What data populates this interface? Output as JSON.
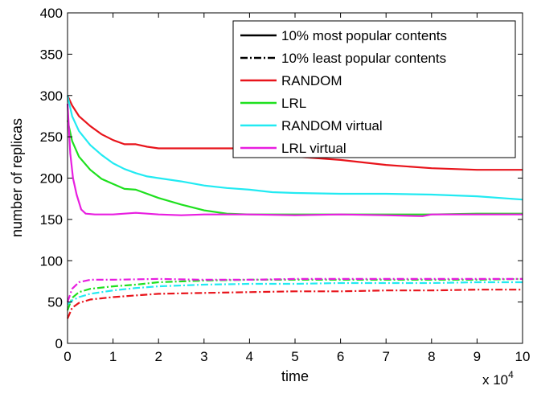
{
  "chart_data": {
    "type": "line",
    "xlabel": "time",
    "ylabel": "number of replicas",
    "x_multiplier_label": "x 10",
    "x_multiplier_exp": "4",
    "xlim": [
      0,
      100000
    ],
    "ylim": [
      0,
      400
    ],
    "x_tick_values": [
      0,
      10000,
      20000,
      30000,
      40000,
      50000,
      60000,
      70000,
      80000,
      90000,
      100000
    ],
    "x_tick_labels": [
      "0",
      "1",
      "2",
      "3",
      "4",
      "5",
      "6",
      "7",
      "8",
      "9",
      "10"
    ],
    "y_tick_values": [
      0,
      50,
      100,
      150,
      200,
      250,
      300,
      350,
      400
    ],
    "y_tick_labels": [
      "0",
      "50",
      "100",
      "150",
      "200",
      "250",
      "300",
      "350",
      "400"
    ],
    "grid": false,
    "legend_position": "top-right",
    "legend": [
      {
        "label": "10% most popular contents",
        "color": "#000000",
        "style": "solid"
      },
      {
        "label": "10% least popular contents",
        "color": "#000000",
        "style": "dashdot"
      },
      {
        "label": "RANDOM",
        "color": "#e8141b",
        "style": "solid"
      },
      {
        "label": "LRL",
        "color": "#1ee01e",
        "style": "solid"
      },
      {
        "label": "RANDOM virtual",
        "color": "#22eaf2",
        "style": "solid"
      },
      {
        "label": "LRL virtual",
        "color": "#e81ee0",
        "style": "solid"
      }
    ],
    "series": [
      {
        "group": "most",
        "method": "RANDOM",
        "color": "#e8141b",
        "style": "solid",
        "points": [
          [
            0,
            300
          ],
          [
            1000,
            288
          ],
          [
            2500,
            275
          ],
          [
            5000,
            263
          ],
          [
            7500,
            253
          ],
          [
            10000,
            246
          ],
          [
            12500,
            241
          ],
          [
            15000,
            241
          ],
          [
            17500,
            238
          ],
          [
            20000,
            236
          ],
          [
            30000,
            236
          ],
          [
            40000,
            236
          ],
          [
            45000,
            230
          ],
          [
            50000,
            226
          ],
          [
            60000,
            222
          ],
          [
            70000,
            216
          ],
          [
            80000,
            212
          ],
          [
            90000,
            210
          ],
          [
            100000,
            210
          ]
        ]
      },
      {
        "group": "most",
        "method": "LRL",
        "color": "#1ee01e",
        "style": "solid",
        "points": [
          [
            0,
            270
          ],
          [
            1000,
            245
          ],
          [
            2500,
            226
          ],
          [
            5000,
            210
          ],
          [
            7500,
            199
          ],
          [
            10000,
            193
          ],
          [
            12500,
            187
          ],
          [
            15000,
            186
          ],
          [
            20000,
            176
          ],
          [
            25000,
            168
          ],
          [
            30000,
            161
          ],
          [
            35000,
            157
          ],
          [
            40000,
            156
          ],
          [
            50000,
            156
          ],
          [
            60000,
            156
          ],
          [
            70000,
            156
          ],
          [
            80000,
            156
          ],
          [
            90000,
            157
          ],
          [
            100000,
            157
          ]
        ]
      },
      {
        "group": "most",
        "method": "RANDOM virtual",
        "color": "#22eaf2",
        "style": "solid",
        "points": [
          [
            0,
            300
          ],
          [
            1000,
            275
          ],
          [
            2500,
            257
          ],
          [
            5000,
            240
          ],
          [
            7500,
            228
          ],
          [
            10000,
            218
          ],
          [
            12500,
            211
          ],
          [
            15000,
            206
          ],
          [
            17500,
            202
          ],
          [
            20000,
            200
          ],
          [
            25000,
            196
          ],
          [
            30000,
            191
          ],
          [
            35000,
            188
          ],
          [
            40000,
            186
          ],
          [
            45000,
            183
          ],
          [
            50000,
            182
          ],
          [
            60000,
            181
          ],
          [
            70000,
            181
          ],
          [
            80000,
            180
          ],
          [
            90000,
            178
          ],
          [
            100000,
            174
          ]
        ]
      },
      {
        "group": "most",
        "method": "LRL virtual",
        "color": "#e81ee0",
        "style": "solid",
        "points": [
          [
            0,
            290
          ],
          [
            600,
            230
          ],
          [
            1200,
            200
          ],
          [
            2000,
            180
          ],
          [
            3000,
            162
          ],
          [
            4000,
            157
          ],
          [
            6000,
            156
          ],
          [
            10000,
            156
          ],
          [
            15000,
            158
          ],
          [
            20000,
            156
          ],
          [
            25000,
            155
          ],
          [
            30000,
            156
          ],
          [
            40000,
            156
          ],
          [
            50000,
            155
          ],
          [
            60000,
            156
          ],
          [
            70000,
            155
          ],
          [
            78000,
            154
          ],
          [
            80000,
            156
          ],
          [
            90000,
            156
          ],
          [
            100000,
            156
          ]
        ]
      },
      {
        "group": "least",
        "method": "RANDOM",
        "color": "#e8141b",
        "style": "dashdot",
        "points": [
          [
            0,
            30
          ],
          [
            1000,
            43
          ],
          [
            2500,
            49
          ],
          [
            5000,
            53
          ],
          [
            10000,
            56
          ],
          [
            15000,
            58
          ],
          [
            20000,
            60
          ],
          [
            30000,
            61
          ],
          [
            40000,
            62
          ],
          [
            50000,
            63
          ],
          [
            60000,
            63
          ],
          [
            70000,
            64
          ],
          [
            80000,
            64
          ],
          [
            90000,
            65
          ],
          [
            100000,
            65
          ]
        ]
      },
      {
        "group": "least",
        "method": "LRL",
        "color": "#1ee01e",
        "style": "dashdot",
        "points": [
          [
            0,
            40
          ],
          [
            1000,
            55
          ],
          [
            2500,
            62
          ],
          [
            5000,
            66
          ],
          [
            10000,
            69
          ],
          [
            15000,
            71
          ],
          [
            20000,
            74
          ],
          [
            30000,
            76
          ],
          [
            40000,
            77
          ],
          [
            50000,
            77
          ],
          [
            60000,
            77
          ],
          [
            70000,
            77
          ],
          [
            80000,
            77
          ],
          [
            90000,
            77
          ],
          [
            100000,
            78
          ]
        ]
      },
      {
        "group": "least",
        "method": "RANDOM virtual",
        "color": "#22eaf2",
        "style": "dashdot",
        "points": [
          [
            0,
            47
          ],
          [
            1000,
            52
          ],
          [
            2500,
            56
          ],
          [
            5000,
            60
          ],
          [
            10000,
            64
          ],
          [
            15000,
            67
          ],
          [
            20000,
            69
          ],
          [
            30000,
            71
          ],
          [
            40000,
            72
          ],
          [
            50000,
            72
          ],
          [
            60000,
            73
          ],
          [
            70000,
            73
          ],
          [
            80000,
            73
          ],
          [
            90000,
            74
          ],
          [
            100000,
            74
          ]
        ]
      },
      {
        "group": "least",
        "method": "LRL virtual",
        "color": "#e81ee0",
        "style": "dashdot",
        "points": [
          [
            0,
            50
          ],
          [
            1000,
            66
          ],
          [
            2500,
            74
          ],
          [
            5000,
            77
          ],
          [
            10000,
            77
          ],
          [
            20000,
            78
          ],
          [
            30000,
            77
          ],
          [
            40000,
            77
          ],
          [
            50000,
            78
          ],
          [
            60000,
            78
          ],
          [
            70000,
            78
          ],
          [
            80000,
            78
          ],
          [
            90000,
            78
          ],
          [
            100000,
            78
          ]
        ]
      }
    ]
  }
}
